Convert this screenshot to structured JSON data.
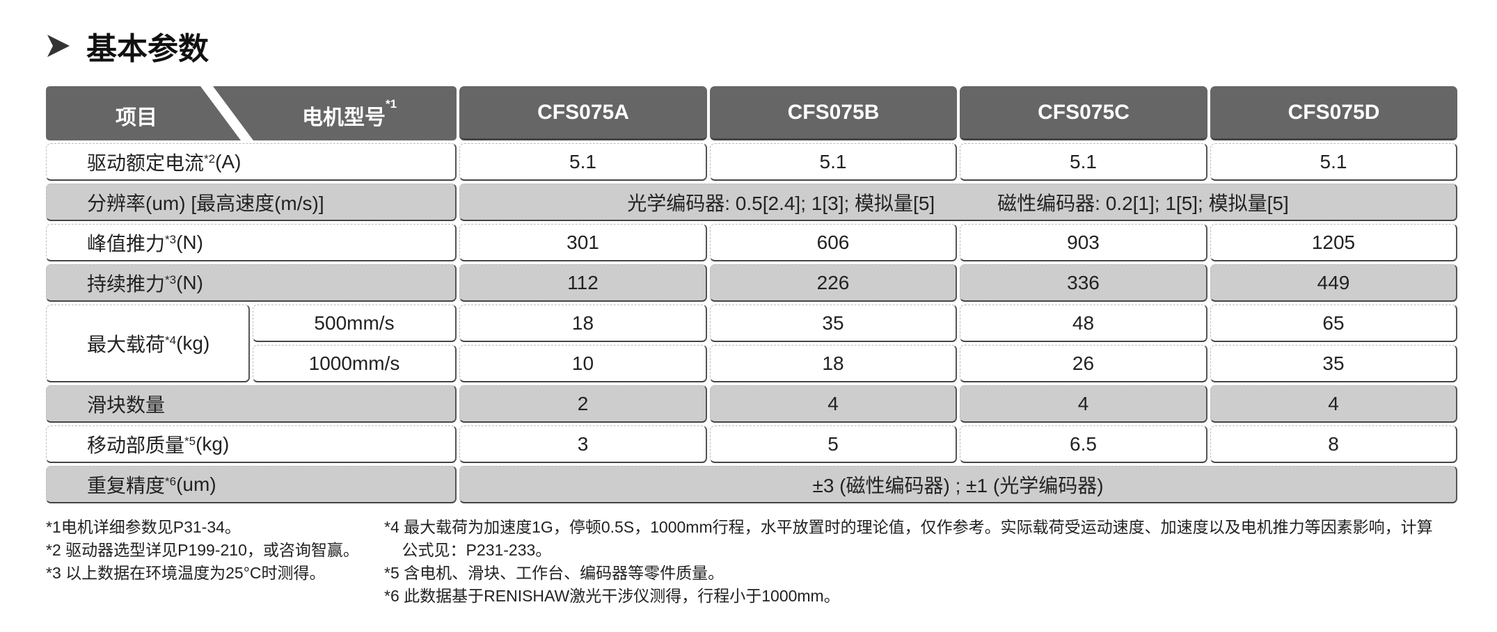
{
  "title": "基本参数",
  "header": {
    "item": "项目",
    "model": "电机型号",
    "model_note": "*1",
    "models": [
      "CFS075A",
      "CFS075B",
      "CFS075C",
      "CFS075D"
    ]
  },
  "rows": {
    "current": {
      "label": "驱动额定电流",
      "note": "*2",
      "unit": "(A)",
      "values": [
        "5.1",
        "5.1",
        "5.1",
        "5.1"
      ]
    },
    "resolution": {
      "label": "分辨率(um)  [最高速度(m/s)]",
      "optical": "光学编码器: 0.5[2.4];   1[3];   模拟量[5]",
      "magnetic": "磁性编码器: 0.2[1];   1[5];   模拟量[5]"
    },
    "peak": {
      "label": "峰值推力",
      "note": "*3",
      "unit": "(N)",
      "values": [
        "301",
        "606",
        "903",
        "1205"
      ]
    },
    "continuous": {
      "label": "持续推力",
      "note": "*3",
      "unit": "(N)",
      "values": [
        "112",
        "226",
        "336",
        "449"
      ]
    },
    "maxload": {
      "label": "最大载荷",
      "note": "*4",
      "unit": "(kg)",
      "sub": [
        {
          "speed": "500mm/s",
          "values": [
            "18",
            "35",
            "48",
            "65"
          ]
        },
        {
          "speed": "1000mm/s",
          "values": [
            "10",
            "18",
            "26",
            "35"
          ]
        }
      ]
    },
    "sliders": {
      "label": "滑块数量",
      "values": [
        "2",
        "4",
        "4",
        "4"
      ]
    },
    "mass": {
      "label": "移动部质量",
      "note": "*5",
      "unit": "(kg)",
      "values": [
        "3",
        "5",
        "6.5",
        "8"
      ]
    },
    "repeat": {
      "label": "重复精度",
      "note": "*6",
      "unit": "(um)",
      "value": "±3 (磁性编码器) ;   ±1 (光学编码器)"
    }
  },
  "footnotes": {
    "left": [
      "*1电机详细参数见P31-34。",
      "*2 驱动器选型详见P199-210，或咨询智赢。",
      "*3 以上数据在环境温度为25°C时测得。"
    ],
    "right": [
      "*4 最大载荷为加速度1G，停顿0.5S，1000mm行程，水平放置时的理论值，仅作参考。实际载荷受运动速度、加速度以及电机推力等因素影响，计算",
      "    公式见：P231-233。",
      "*5 含电机、滑块、工作台、编码器等零件质量。",
      "*6 此数据基于RENISHAW激光干涉仪测得，行程小于1000mm。"
    ]
  }
}
